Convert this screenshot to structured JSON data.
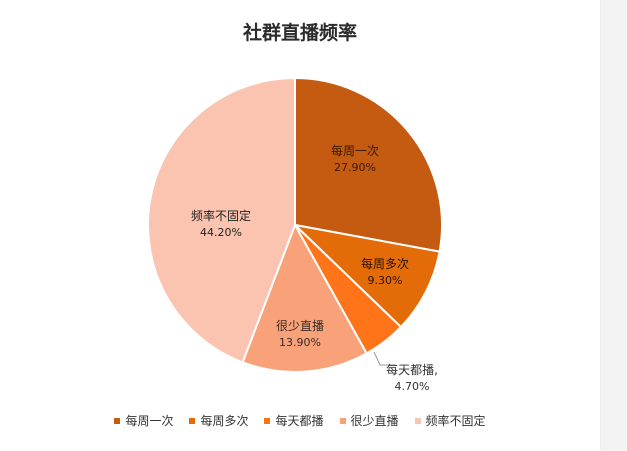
{
  "chart_data": {
    "type": "pie",
    "title": "社群直播频率",
    "slices": [
      {
        "name": "每周一次",
        "value": 27.9,
        "label": "27.90%",
        "color": "#c55a11"
      },
      {
        "name": "每周多次",
        "value": 9.3,
        "label": "9.30%",
        "color": "#e36c09"
      },
      {
        "name": "每天都播",
        "value": 4.7,
        "label": "4.70%",
        "color": "#ff7419"
      },
      {
        "name": "很少直播",
        "value": 13.9,
        "label": "13.90%",
        "color": "#f9a27a"
      },
      {
        "name": "频率不固定",
        "value": 44.2,
        "label": "44.20%",
        "color": "#fbc4b0"
      }
    ],
    "category_label_suffix": {
      "每天都播": ","
    },
    "legend_position": "bottom"
  }
}
